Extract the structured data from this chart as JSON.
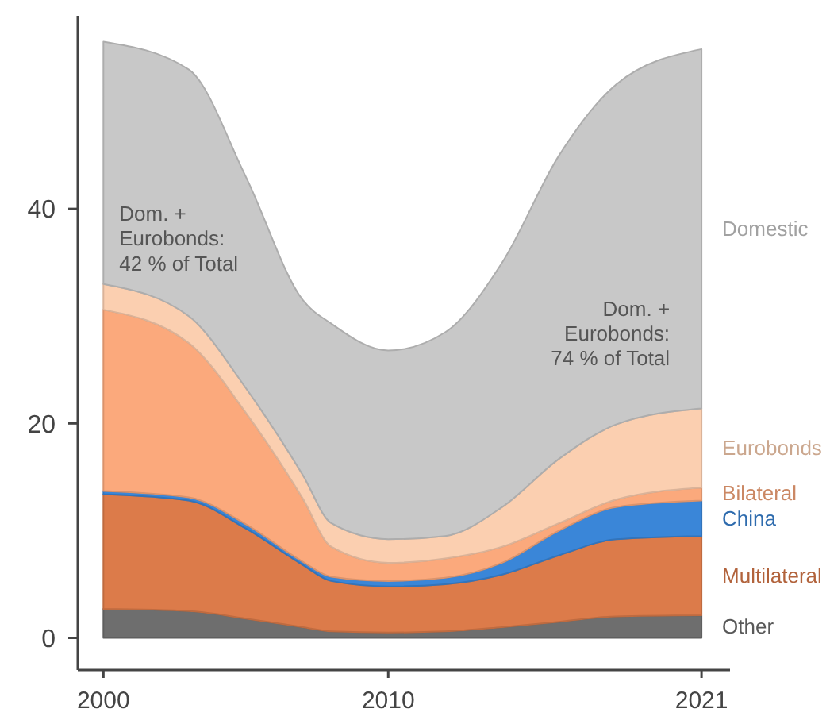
{
  "chart_data": {
    "type": "area",
    "stacked": true,
    "x": [
      2000,
      2003,
      2005,
      2007,
      2008,
      2010,
      2012,
      2014,
      2016,
      2018,
      2021
    ],
    "series": [
      {
        "name": "Other",
        "color": "#6e6e6e",
        "values": [
          2.7,
          2.5,
          1.8,
          1.0,
          0.6,
          0.5,
          0.6,
          1.0,
          1.5,
          2.0,
          2.1
        ]
      },
      {
        "name": "Multilateral",
        "color": "#dc7b4a",
        "values": [
          10.7,
          10.3,
          8.4,
          5.8,
          4.7,
          4.3,
          4.4,
          4.9,
          6.2,
          7.2,
          7.4
        ]
      },
      {
        "name": "China",
        "color": "#3a86d8",
        "values": [
          0.3,
          0.3,
          0.4,
          0.3,
          0.4,
          0.5,
          0.6,
          1.1,
          2.3,
          3.0,
          3.3
        ]
      },
      {
        "name": "Bilateral",
        "color": "#fba97c",
        "values": [
          16.9,
          14.4,
          10.4,
          5.9,
          2.8,
          1.7,
          1.8,
          1.5,
          0.7,
          0.7,
          1.2
        ]
      },
      {
        "name": "Eurobonds",
        "color": "#fbcfb0",
        "values": [
          2.4,
          2.5,
          2.3,
          2.2,
          2.2,
          2.2,
          2.1,
          3.7,
          6.0,
          7.0,
          7.4
        ]
      },
      {
        "name": "Domestic",
        "color": "#c8c8c8",
        "values": [
          22.6,
          23,
          19.7,
          16.3,
          18.6,
          17.6,
          19,
          22.8,
          28.3,
          31.7,
          33.5
        ]
      }
    ],
    "xlim": [
      1999.1,
      2022
    ],
    "xticks": [
      2000,
      2010,
      2021
    ],
    "ylim": [
      -3,
      58
    ],
    "yticks": [
      0,
      20,
      40
    ],
    "grid": false,
    "legend": "right",
    "annotations": [
      "Dom. +\nEurobonds:\n42 % of Total",
      "Dom. +\nEurobonds:\n74 % of Total"
    ]
  }
}
